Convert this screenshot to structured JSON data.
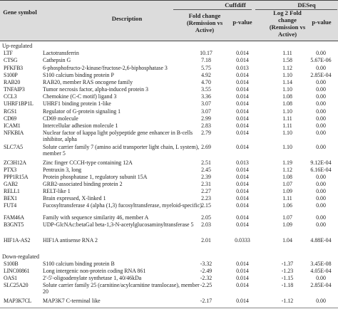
{
  "header": {
    "gene_symbol": "Gene symbol",
    "description": "Description",
    "cuffdiff": "Cuffdiff",
    "deseq": "DESeq",
    "fold_change": "Fold change (Remission vs Active)",
    "p_value": "p-value",
    "log2_fold_change": "Log 2 Fold change (Remission vs Active)",
    "p_value_2": "p-value"
  },
  "sections": {
    "up": "Up-regulated",
    "down": "Down-regulated"
  },
  "up_rows": [
    {
      "sym": "LTF",
      "desc": "Lactotransferrin",
      "fc": "10.17",
      "pv": "0.014",
      "l2": "1.11",
      "pv2": "0.00"
    },
    {
      "sym": "CTSG",
      "desc": "Cathepsin G",
      "fc": "7.18",
      "pv": "0.014",
      "l2": "1.58",
      "pv2": "5.67E-06"
    },
    {
      "sym": "PFKFB3",
      "desc": "6-phosphofructo-2-kinase/fructose-2,6-biphosphatase 3",
      "fc": "5.75",
      "pv": "0.013",
      "l2": "1.12",
      "pv2": "0.00"
    },
    {
      "sym": "S100P",
      "desc": "S100 calcium binding protein P",
      "fc": "4.92",
      "pv": "0.014",
      "l2": "1.10",
      "pv2": "2.85E-04"
    },
    {
      "sym": "RAB20",
      "desc": "RAB20, member RAS oncogene family",
      "fc": "4.70",
      "pv": "0.014",
      "l2": "1.14",
      "pv2": "0.00"
    },
    {
      "sym": "TNFAIP3",
      "desc": "Tumor necrosis factor, alpha-induced protein 3",
      "fc": "3.55",
      "pv": "0.014",
      "l2": "1.10",
      "pv2": "0.00"
    },
    {
      "sym": "CCL3",
      "desc": "Chemokine (C-C motif) ligand 3",
      "fc": "3.36",
      "pv": "0.014",
      "l2": "1.08",
      "pv2": "0.00"
    },
    {
      "sym": "UHRF1BP1L",
      "desc": "UHRF1 binding protein 1-like",
      "fc": "3.07",
      "pv": "0.014",
      "l2": "1.08",
      "pv2": "0.00"
    },
    {
      "sym": "RGS1",
      "desc": "Regulator of G-protein signaling 1",
      "fc": "3.07",
      "pv": "0.014",
      "l2": "1.10",
      "pv2": "0.00"
    },
    {
      "sym": "CD69",
      "desc": "CD69 molecule",
      "fc": "2.99",
      "pv": "0.014",
      "l2": "1.11",
      "pv2": "0.00"
    },
    {
      "sym": "ICAM1",
      "desc": "Intercellular adhesion molecule 1",
      "fc": "2.83",
      "pv": "0.014",
      "l2": "1.11",
      "pv2": "0.00"
    },
    {
      "sym": "NFKBIA",
      "desc": "Nuclear factor of kappa light polypeptide gene enhancer in B-cells inhibitor, alpha",
      "fc": "2.79",
      "pv": "0.014",
      "l2": "1.10",
      "pv2": "0.00"
    },
    {
      "sym": "SLC7A5",
      "desc": "Solute carrier family 7 (amino acid transporter light chain, L system), member 5",
      "fc": "2.69",
      "pv": "0.014",
      "l2": "1.10",
      "pv2": "0.00"
    },
    {
      "sym": "ZC3H12A",
      "desc": "Zinc finger CCCH-type containing 12A",
      "fc": "2.51",
      "pv": "0.013",
      "l2": "1.19",
      "pv2": "9.12E-04"
    },
    {
      "sym": "PTX3",
      "desc": "Pentraxin 3, long",
      "fc": "2.45",
      "pv": "0.014",
      "l2": "1.12",
      "pv2": "6.16E-04"
    },
    {
      "sym": "PPP1R15A",
      "desc": "Protein phosphatase 1, regulatory subunit 15A",
      "fc": "2.39",
      "pv": "0.014",
      "l2": "1.08",
      "pv2": "0.00"
    },
    {
      "sym": "GAB2",
      "desc": "GRB2-associated binding protein 2",
      "fc": "2.31",
      "pv": "0.014",
      "l2": "1.07",
      "pv2": "0.00"
    },
    {
      "sym": "RELL1",
      "desc": "RELT-like 1",
      "fc": "2.27",
      "pv": "0.014",
      "l2": "1.09",
      "pv2": "0.00"
    },
    {
      "sym": "BEX1",
      "desc": "Brain expressed, X-linked 1",
      "fc": "2.23",
      "pv": "0.014",
      "l2": "1.11",
      "pv2": "0.00"
    },
    {
      "sym": "FUT4",
      "desc": "Fucosyltransferase 4 (alpha (1,3) fucosyltransferase, myeloid-specific)",
      "fc": "2.15",
      "pv": "0.014",
      "l2": "1.06",
      "pv2": "0.00"
    },
    {
      "sym": "FAM46A",
      "desc": "Family with sequence similarity 46, member A",
      "fc": "2.05",
      "pv": "0.014",
      "l2": "1.07",
      "pv2": "0.00"
    },
    {
      "sym": "B3GNT5",
      "desc": "UDP-GlcNAc:betaGal beta-1,3-N-acetylglucosaminyltransferase 5",
      "fc": "2.03",
      "pv": "0.014",
      "l2": "1.09",
      "pv2": "0.00"
    },
    {
      "sym": "HIF1A-AS2",
      "desc": "HIF1A antisense RNA 2",
      "fc": "2.01",
      "pv": "0.0333",
      "l2": "1.04",
      "pv2": "4.88E-04"
    }
  ],
  "down_rows": [
    {
      "sym": "S100B",
      "desc": "S100 calcium binding protein B",
      "fc": "-3.32",
      "pv": "0.014",
      "l2": "-1.37",
      "pv2": "3.45E-08"
    },
    {
      "sym": "LINC00861",
      "desc": "Long intergenic non-protein coding RNA 861",
      "fc": "-2.49",
      "pv": "0.014",
      "l2": "-1.23",
      "pv2": "4.05E-04"
    },
    {
      "sym": "OAS1",
      "desc": "2'-5'-oligoadenylate synthetase 1, 40/46kDa",
      "fc": "-2.32",
      "pv": "0.014",
      "l2": "-1.15",
      "pv2": "0.00"
    },
    {
      "sym": "SLC25A20",
      "desc": "Solute carrier family 25 (carnitine/acylcarnitine translocase), member 20",
      "fc": "-2.25",
      "pv": "0.014",
      "l2": "-1.18",
      "pv2": "2.85E-04"
    },
    {
      "sym": "MAP3K7CL",
      "desc": "MAP3K7 C-terminal like",
      "fc": "-2.17",
      "pv": "0.014",
      "l2": "-1.12",
      "pv2": "0.00"
    }
  ]
}
